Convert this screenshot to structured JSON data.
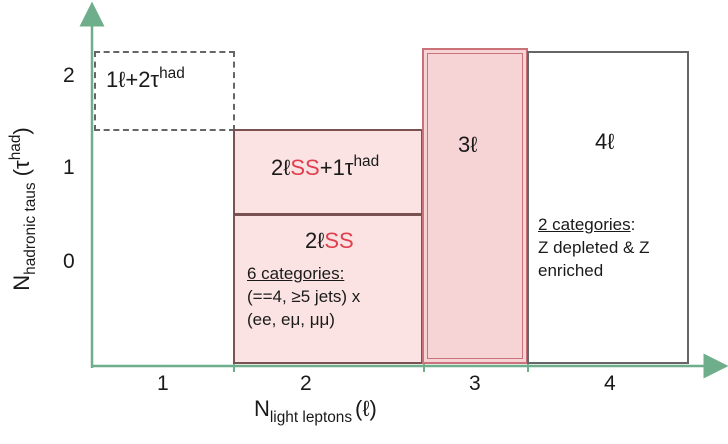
{
  "axes": {
    "x_label_main": "N",
    "x_label_sub": "light leptons",
    "x_label_symbol": "(ℓ)",
    "x_ticks": [
      "1",
      "2",
      "3",
      "4"
    ],
    "y_label_main": "N",
    "y_label_sub": "hadronic taus",
    "y_label_paren_open": "(τ",
    "y_label_sup": "had",
    "y_label_paren_close": ")",
    "y_ticks": [
      "2",
      "1",
      "0"
    ],
    "axis_color": "#6fae8a"
  },
  "boxes": {
    "one_lep_two_tau": {
      "main": "1ℓ+2τ",
      "sup": "had"
    },
    "two_lss_one_tau": {
      "prefix": "2ℓ",
      "ss": "SS",
      "suffix": "+1τ",
      "sup": "had"
    },
    "two_lss": {
      "prefix": "2ℓ",
      "ss": "SS",
      "note_title": "6 categories:",
      "note_line2": "(==4, ≥5 jets) x",
      "note_line3": "(ee, eμ, μμ)"
    },
    "three_lep": {
      "label": "3ℓ"
    },
    "four_lep": {
      "label": "4ℓ",
      "note_title": "2 categories",
      "note_colon": ":",
      "note_line2": "Z depleted & Z",
      "note_line3": "enriched"
    }
  },
  "colors": {
    "ss_red": "#e0404d",
    "pink_fill": "#fbe3e3",
    "pink_strong_fill": "#f6d3d5"
  }
}
